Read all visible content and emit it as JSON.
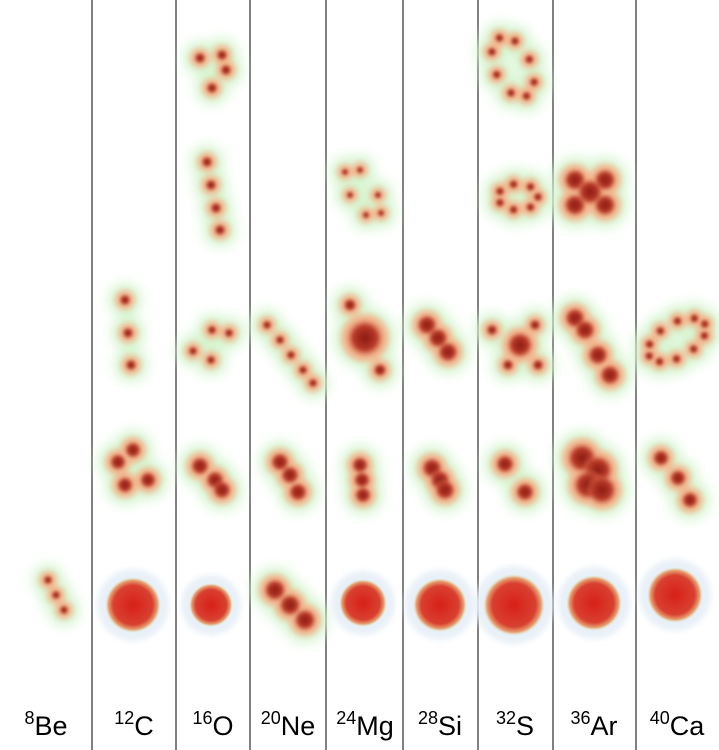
{
  "columns": [
    {
      "mass": 8,
      "symbol": "Be"
    },
    {
      "mass": 12,
      "symbol": "C"
    },
    {
      "mass": 16,
      "symbol": "O"
    },
    {
      "mass": 20,
      "symbol": "Ne"
    },
    {
      "mass": 24,
      "symbol": "Mg"
    },
    {
      "mass": 28,
      "symbol": "Si"
    },
    {
      "mass": 32,
      "symbol": "S"
    },
    {
      "mass": 36,
      "symbol": "Ar"
    },
    {
      "mass": 40,
      "symbol": "Ca"
    }
  ]
}
